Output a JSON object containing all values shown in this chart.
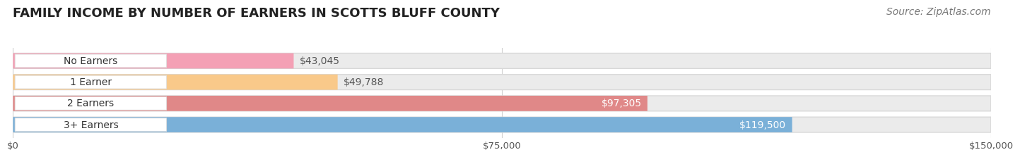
{
  "title": "FAMILY INCOME BY NUMBER OF EARNERS IN SCOTTS BLUFF COUNTY",
  "source": "Source: ZipAtlas.com",
  "categories": [
    "No Earners",
    "1 Earner",
    "2 Earners",
    "3+ Earners"
  ],
  "values": [
    43045,
    49788,
    97305,
    119500
  ],
  "bar_colors": [
    "#f4a0b5",
    "#f9c98a",
    "#e08888",
    "#7ab0d8"
  ],
  "label_colors": [
    "#555555",
    "#555555",
    "#ffffff",
    "#ffffff"
  ],
  "value_labels": [
    "$43,045",
    "$49,788",
    "$97,305",
    "$119,500"
  ],
  "xlim": [
    0,
    150000
  ],
  "xtick_labels": [
    "$0",
    "$75,000",
    "$150,000"
  ],
  "background_color": "#ffffff",
  "bar_background_color": "#ebebeb",
  "bar_edge_color": "#d8d8d8",
  "grid_color": "#cccccc",
  "title_fontsize": 13,
  "source_fontsize": 10,
  "label_fontsize": 10,
  "value_fontsize": 10
}
